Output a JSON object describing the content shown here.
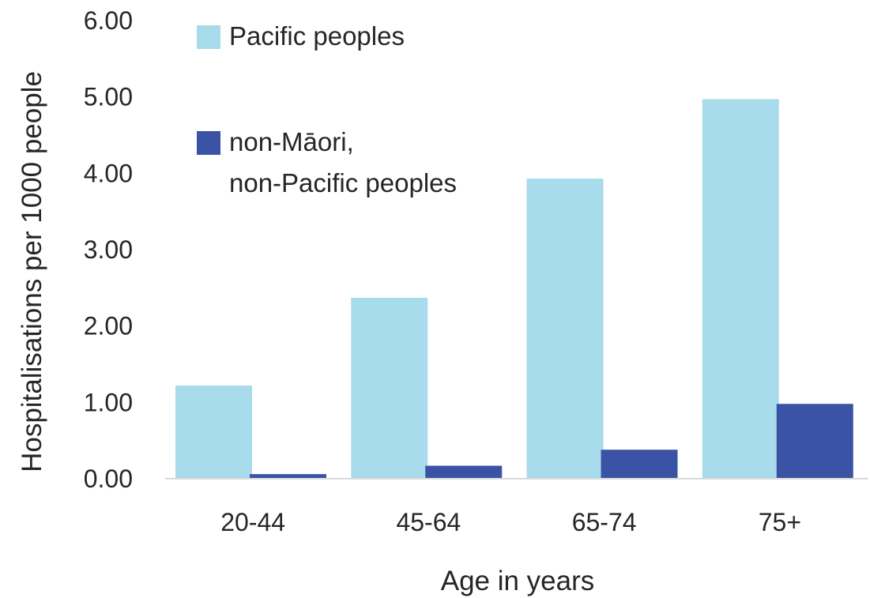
{
  "chart_data": {
    "type": "bar",
    "categories": [
      "20-44",
      "45-64",
      "65-74",
      "75+"
    ],
    "series": [
      {
        "name": "Pacific peoples",
        "values": [
          1.22,
          2.37,
          3.93,
          4.97
        ],
        "color": "#a8dbeb"
      },
      {
        "name": "non-Māori,\nnon-Pacific peoples",
        "values": [
          0.06,
          0.17,
          0.38,
          0.98
        ],
        "color": "#3a53a4"
      }
    ],
    "xlabel": "Age in years",
    "ylabel": "Hospitalisations per 1000 people",
    "ylim": [
      0,
      6
    ],
    "yticks": [
      "0.00",
      "1.00",
      "2.00",
      "3.00",
      "4.00",
      "5.00",
      "6.00"
    ],
    "grid": false,
    "legend": "top-left"
  }
}
